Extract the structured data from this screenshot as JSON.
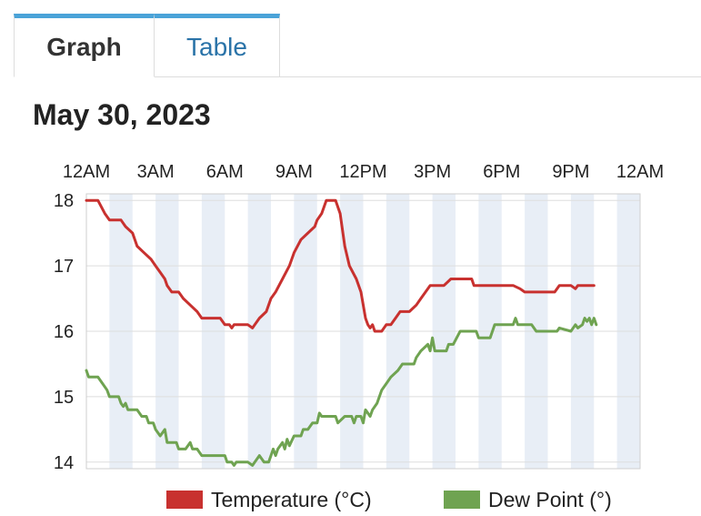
{
  "tabs": {
    "graph": "Graph",
    "table": "Table"
  },
  "date": "May 30, 2023",
  "colors": {
    "temperature": "#c8312f",
    "dew_point": "#6fa351",
    "grid": "#dddddd",
    "band": "#e8eef6"
  },
  "chart_data": {
    "type": "line",
    "x_unit": "hours since 12AM",
    "x_ticks": [
      {
        "x": 0,
        "label": "12AM"
      },
      {
        "x": 3,
        "label": "3AM"
      },
      {
        "x": 6,
        "label": "6AM"
      },
      {
        "x": 9,
        "label": "9AM"
      },
      {
        "x": 12,
        "label": "12PM"
      },
      {
        "x": 15,
        "label": "3PM"
      },
      {
        "x": 18,
        "label": "6PM"
      },
      {
        "x": 21,
        "label": "9PM"
      },
      {
        "x": 24,
        "label": "12AM"
      }
    ],
    "y_ticks": [
      14,
      15,
      16,
      17,
      18
    ],
    "xlim": [
      0,
      24
    ],
    "ylim": [
      13.9,
      18.1
    ],
    "grid": true,
    "legend_position": "bottom-right",
    "series": [
      {
        "name": "Temperature (°C)",
        "color_key": "temperature",
        "points": [
          [
            0,
            18
          ],
          [
            0.5,
            18
          ],
          [
            0.8,
            17.8
          ],
          [
            1,
            17.7
          ],
          [
            1.5,
            17.7
          ],
          [
            1.7,
            17.6
          ],
          [
            2,
            17.5
          ],
          [
            2.2,
            17.3
          ],
          [
            2.5,
            17.2
          ],
          [
            2.8,
            17.1
          ],
          [
            3,
            17
          ],
          [
            3.2,
            16.9
          ],
          [
            3.4,
            16.8
          ],
          [
            3.5,
            16.7
          ],
          [
            3.7,
            16.6
          ],
          [
            4,
            16.6
          ],
          [
            4.2,
            16.5
          ],
          [
            4.5,
            16.4
          ],
          [
            4.8,
            16.3
          ],
          [
            5,
            16.2
          ],
          [
            5.8,
            16.2
          ],
          [
            6,
            16.1
          ],
          [
            6.2,
            16.1
          ],
          [
            6.3,
            16.05
          ],
          [
            6.4,
            16.1
          ],
          [
            7,
            16.1
          ],
          [
            7.2,
            16.05
          ],
          [
            7.3,
            16.1
          ],
          [
            7.5,
            16.2
          ],
          [
            7.8,
            16.3
          ],
          [
            8,
            16.5
          ],
          [
            8.2,
            16.6
          ],
          [
            8.5,
            16.8
          ],
          [
            8.8,
            17
          ],
          [
            9,
            17.2
          ],
          [
            9.3,
            17.4
          ],
          [
            9.6,
            17.5
          ],
          [
            9.9,
            17.6
          ],
          [
            10,
            17.7
          ],
          [
            10.2,
            17.8
          ],
          [
            10.4,
            18
          ],
          [
            10.8,
            18
          ],
          [
            11,
            17.8
          ],
          [
            11.2,
            17.3
          ],
          [
            11.4,
            17
          ],
          [
            11.7,
            16.8
          ],
          [
            11.9,
            16.6
          ],
          [
            12,
            16.4
          ],
          [
            12.1,
            16.2
          ],
          [
            12.2,
            16.1
          ],
          [
            12.3,
            16.05
          ],
          [
            12.4,
            16.1
          ],
          [
            12.5,
            16
          ],
          [
            12.8,
            16
          ],
          [
            13,
            16.1
          ],
          [
            13.2,
            16.1
          ],
          [
            13.4,
            16.2
          ],
          [
            13.6,
            16.3
          ],
          [
            14,
            16.3
          ],
          [
            14.3,
            16.4
          ],
          [
            14.5,
            16.5
          ],
          [
            14.7,
            16.6
          ],
          [
            14.9,
            16.7
          ],
          [
            15.5,
            16.7
          ],
          [
            15.8,
            16.8
          ],
          [
            16.7,
            16.8
          ],
          [
            16.8,
            16.7
          ],
          [
            18.5,
            16.7
          ],
          [
            18.8,
            16.65
          ],
          [
            19,
            16.6
          ],
          [
            20.3,
            16.6
          ],
          [
            20.5,
            16.7
          ],
          [
            21,
            16.7
          ],
          [
            21.2,
            16.65
          ],
          [
            21.3,
            16.7
          ],
          [
            22,
            16.7
          ]
        ]
      },
      {
        "name": "Dew Point (°)",
        "color_key": "dew_point",
        "points": [
          [
            0,
            15.4
          ],
          [
            0.1,
            15.3
          ],
          [
            0.5,
            15.3
          ],
          [
            0.7,
            15.2
          ],
          [
            0.9,
            15.1
          ],
          [
            1,
            15
          ],
          [
            1.4,
            15
          ],
          [
            1.5,
            14.9
          ],
          [
            1.6,
            14.85
          ],
          [
            1.7,
            14.9
          ],
          [
            1.8,
            14.8
          ],
          [
            2.2,
            14.8
          ],
          [
            2.4,
            14.7
          ],
          [
            2.6,
            14.7
          ],
          [
            2.7,
            14.6
          ],
          [
            2.9,
            14.6
          ],
          [
            3,
            14.5
          ],
          [
            3.2,
            14.4
          ],
          [
            3.4,
            14.5
          ],
          [
            3.5,
            14.3
          ],
          [
            3.9,
            14.3
          ],
          [
            4,
            14.2
          ],
          [
            4.3,
            14.2
          ],
          [
            4.5,
            14.3
          ],
          [
            4.6,
            14.2
          ],
          [
            4.8,
            14.2
          ],
          [
            5,
            14.1
          ],
          [
            6,
            14.1
          ],
          [
            6.1,
            14
          ],
          [
            6.3,
            14
          ],
          [
            6.4,
            13.95
          ],
          [
            6.5,
            14
          ],
          [
            7,
            14
          ],
          [
            7.2,
            13.95
          ],
          [
            7.3,
            14
          ],
          [
            7.5,
            14.1
          ],
          [
            7.7,
            14
          ],
          [
            7.9,
            14
          ],
          [
            8,
            14.1
          ],
          [
            8.1,
            14.2
          ],
          [
            8.2,
            14.1
          ],
          [
            8.3,
            14.2
          ],
          [
            8.5,
            14.3
          ],
          [
            8.6,
            14.2
          ],
          [
            8.7,
            14.35
          ],
          [
            8.8,
            14.25
          ],
          [
            9,
            14.4
          ],
          [
            9.3,
            14.4
          ],
          [
            9.4,
            14.5
          ],
          [
            9.6,
            14.5
          ],
          [
            9.8,
            14.6
          ],
          [
            10,
            14.6
          ],
          [
            10.1,
            14.75
          ],
          [
            10.2,
            14.7
          ],
          [
            10.8,
            14.7
          ],
          [
            10.9,
            14.6
          ],
          [
            11.2,
            14.7
          ],
          [
            11.5,
            14.7
          ],
          [
            11.6,
            14.6
          ],
          [
            11.7,
            14.7
          ],
          [
            11.9,
            14.7
          ],
          [
            12,
            14.6
          ],
          [
            12.1,
            14.8
          ],
          [
            12.3,
            14.7
          ],
          [
            12.4,
            14.8
          ],
          [
            12.6,
            14.9
          ],
          [
            12.8,
            15.1
          ],
          [
            13,
            15.2
          ],
          [
            13.2,
            15.3
          ],
          [
            13.5,
            15.4
          ],
          [
            13.7,
            15.5
          ],
          [
            14.2,
            15.5
          ],
          [
            14.3,
            15.6
          ],
          [
            14.5,
            15.7
          ],
          [
            14.8,
            15.8
          ],
          [
            14.9,
            15.7
          ],
          [
            15,
            15.9
          ],
          [
            15.1,
            15.7
          ],
          [
            15.6,
            15.7
          ],
          [
            15.7,
            15.8
          ],
          [
            15.9,
            15.8
          ],
          [
            16.2,
            16
          ],
          [
            16.9,
            16
          ],
          [
            17,
            15.9
          ],
          [
            17.5,
            15.9
          ],
          [
            17.6,
            16
          ],
          [
            17.7,
            16.1
          ],
          [
            18.5,
            16.1
          ],
          [
            18.6,
            16.2
          ],
          [
            18.7,
            16.1
          ],
          [
            19.3,
            16.1
          ],
          [
            19.5,
            16
          ],
          [
            20.4,
            16
          ],
          [
            20.5,
            16.05
          ],
          [
            21,
            16
          ],
          [
            21.2,
            16.1
          ],
          [
            21.3,
            16.05
          ],
          [
            21.5,
            16.1
          ],
          [
            21.6,
            16.2
          ],
          [
            21.7,
            16.15
          ],
          [
            21.8,
            16.2
          ],
          [
            21.9,
            16.1
          ],
          [
            22,
            16.2
          ],
          [
            22.1,
            16.1
          ]
        ]
      }
    ]
  }
}
